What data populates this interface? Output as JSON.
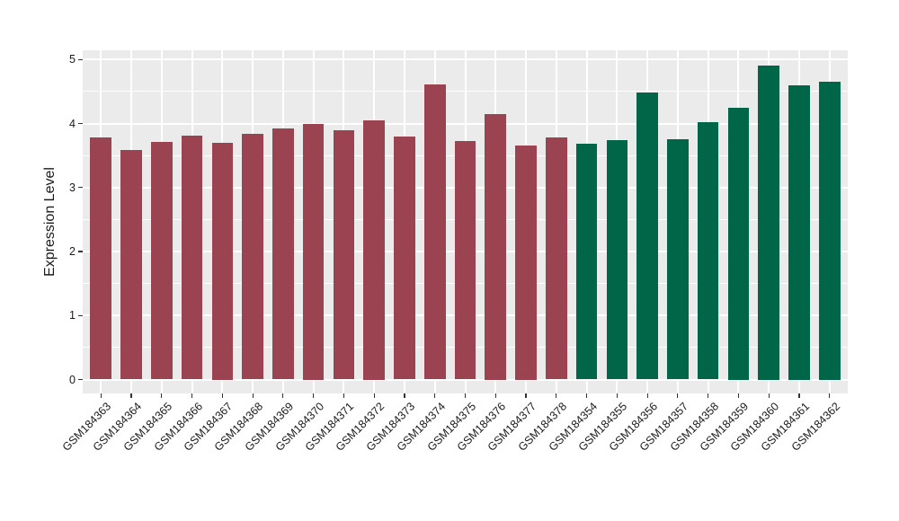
{
  "chart_data": {
    "type": "bar",
    "title": "",
    "xlabel": "",
    "ylabel": "Expression Level",
    "ylim": [
      0,
      5
    ],
    "yticks": [
      0,
      1,
      2,
      3,
      4,
      5
    ],
    "grid": true,
    "legend": "none",
    "panel_background": "#EBEBEB",
    "grid_color": "#FFFFFF",
    "axis_text_color": "#1A1A1A",
    "tick_mark_color": "#333333",
    "categories": [
      "GSM184363",
      "GSM184364",
      "GSM184365",
      "GSM184366",
      "GSM184367",
      "GSM184368",
      "GSM184369",
      "GSM184370",
      "GSM184371",
      "GSM184372",
      "GSM184373",
      "GSM184374",
      "GSM184375",
      "GSM184376",
      "GSM184377",
      "GSM184378",
      "GSM184354",
      "GSM184355",
      "GSM184356",
      "GSM184357",
      "GSM184358",
      "GSM184359",
      "GSM184360",
      "GSM184361",
      "GSM184362"
    ],
    "values": [
      3.78,
      3.58,
      3.71,
      3.81,
      3.7,
      3.84,
      3.92,
      4.0,
      3.89,
      4.05,
      3.79,
      4.61,
      3.72,
      4.15,
      3.65,
      3.78,
      3.69,
      3.74,
      4.49,
      3.76,
      4.02,
      4.25,
      4.9,
      4.6,
      4.65
    ],
    "bar_groups": [
      {
        "color": "#9C4351",
        "count": 16
      },
      {
        "color": "#006647",
        "count": 9
      }
    ]
  }
}
